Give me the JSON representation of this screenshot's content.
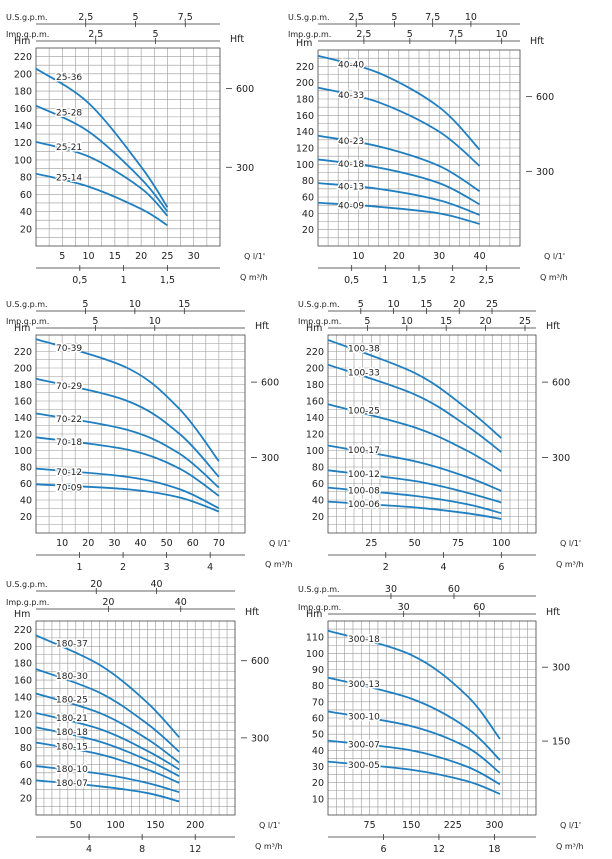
{
  "colors": {
    "curve": "#1f7fc0",
    "grid": "#9a9a9a",
    "text": "#222222"
  },
  "chart_data": [
    {
      "type": "line",
      "xlabel": "Q l/1'",
      "x2label": "Q m³/h",
      "ylabel": "Hm",
      "y2label": "Hft",
      "top1label": "U.S.g.p.m.",
      "top2label": "Imp.g.p.m.",
      "xlim": [
        0,
        35
      ],
      "ylim": [
        0,
        230
      ],
      "xticks": [
        5,
        10,
        15,
        20,
        25,
        30
      ],
      "yticks": [
        20,
        40,
        60,
        80,
        100,
        120,
        140,
        160,
        180,
        200,
        220
      ],
      "x2ticks": [
        {
          "v": 0.5,
          "t": "0,5"
        },
        {
          "v": 1,
          "t": "1"
        },
        {
          "v": 1.5,
          "t": "1,5"
        }
      ],
      "top1ticks": [
        {
          "v": 2.5,
          "t": "2,5"
        },
        {
          "v": 5,
          "t": "5"
        },
        {
          "v": 7.5,
          "t": "7,5"
        }
      ],
      "top2ticks": [
        {
          "v": 2.5,
          "t": "2,5"
        },
        {
          "v": 5,
          "t": "5"
        }
      ],
      "y2ticks": [
        {
          "v": 300,
          "t": "300"
        },
        {
          "v": 600,
          "t": "600"
        }
      ],
      "series": [
        {
          "name": "25-36",
          "x": [
            0,
            10,
            20,
            25
          ],
          "y": [
            206,
            166,
            92,
            45
          ]
        },
        {
          "name": "25-28",
          "x": [
            0,
            10,
            20,
            25
          ],
          "y": [
            163,
            133,
            78,
            40
          ]
        },
        {
          "name": "25-21",
          "x": [
            0,
            10,
            20,
            25
          ],
          "y": [
            121,
            104,
            67,
            35
          ]
        },
        {
          "name": "25-14",
          "x": [
            0,
            10,
            20,
            25
          ],
          "y": [
            84,
            69,
            43,
            24
          ]
        }
      ]
    },
    {
      "type": "line",
      "xlabel": "Q l/1'",
      "x2label": "Q m³/h",
      "ylabel": "Hm",
      "y2label": "Hft",
      "top1label": "U.S.g.p.m.",
      "top2label": "Imp.g.p.m.",
      "xlim": [
        0,
        50
      ],
      "ylim": [
        0,
        240
      ],
      "xticks": [
        10,
        20,
        30,
        40
      ],
      "yticks": [
        20,
        40,
        60,
        80,
        100,
        120,
        140,
        160,
        180,
        200,
        220
      ],
      "x2ticks": [
        {
          "v": 0.5,
          "t": "0,5"
        },
        {
          "v": 1,
          "t": "1"
        },
        {
          "v": 1.5,
          "t": "1,5"
        },
        {
          "v": 2,
          "t": "2"
        },
        {
          "v": 2.5,
          "t": "2,5"
        }
      ],
      "top1ticks": [
        {
          "v": 2.5,
          "t": "2,5"
        },
        {
          "v": 5,
          "t": "5"
        },
        {
          "v": 7.5,
          "t": "7,5"
        },
        {
          "v": 10,
          "t": "10"
        }
      ],
      "top2ticks": [
        {
          "v": 2.5,
          "t": "2,5"
        },
        {
          "v": 5,
          "t": "5"
        },
        {
          "v": 7.5,
          "t": "7,5"
        },
        {
          "v": 10,
          "t": "10"
        }
      ],
      "y2ticks": [
        {
          "v": 300,
          "t": "300"
        },
        {
          "v": 600,
          "t": "600"
        }
      ],
      "series": [
        {
          "name": "40-40",
          "x": [
            0,
            15,
            30,
            40
          ],
          "y": [
            233,
            212,
            170,
            118
          ]
        },
        {
          "name": "40-33",
          "x": [
            0,
            15,
            30,
            40
          ],
          "y": [
            194,
            176,
            140,
            98
          ]
        },
        {
          "name": "40-23",
          "x": [
            0,
            15,
            30,
            40
          ],
          "y": [
            135,
            122,
            98,
            67
          ]
        },
        {
          "name": "40-18",
          "x": [
            0,
            15,
            30,
            40
          ],
          "y": [
            106,
            96,
            77,
            51
          ]
        },
        {
          "name": "40-13",
          "x": [
            0,
            15,
            30,
            40
          ],
          "y": [
            77,
            70,
            56,
            38
          ]
        },
        {
          "name": "40-09",
          "x": [
            0,
            15,
            30,
            40
          ],
          "y": [
            53,
            48,
            40,
            27
          ]
        }
      ]
    },
    {
      "type": "line",
      "xlabel": "Q l/1'",
      "x2label": "Q m³/h",
      "ylabel": "Hm",
      "y2label": "Hft",
      "top1label": "U.S.g.p.m.",
      "top2label": "Imp.g.p.m.",
      "xlim": [
        0,
        80
      ],
      "ylim": [
        0,
        240
      ],
      "xticks": [
        10,
        20,
        30,
        40,
        50,
        60,
        70
      ],
      "yticks": [
        20,
        40,
        60,
        80,
        100,
        120,
        140,
        160,
        180,
        200,
        220
      ],
      "x2ticks": [
        {
          "v": 1,
          "t": "1"
        },
        {
          "v": 2,
          "t": "2"
        },
        {
          "v": 3,
          "t": "3"
        },
        {
          "v": 4,
          "t": "4"
        }
      ],
      "top1ticks": [
        {
          "v": 5,
          "t": "5"
        },
        {
          "v": 10,
          "t": "10"
        },
        {
          "v": 15,
          "t": "15"
        }
      ],
      "top2ticks": [
        {
          "v": 5,
          "t": "5"
        },
        {
          "v": 10,
          "t": "10"
        }
      ],
      "y2ticks": [
        {
          "v": 300,
          "t": "300"
        },
        {
          "v": 600,
          "t": "600"
        }
      ],
      "series": [
        {
          "name": "70-39",
          "x": [
            0,
            35,
            55,
            70
          ],
          "y": [
            235,
            200,
            150,
            87
          ]
        },
        {
          "name": "70-29",
          "x": [
            0,
            35,
            55,
            70
          ],
          "y": [
            187,
            160,
            120,
            68
          ]
        },
        {
          "name": "70-22",
          "x": [
            0,
            35,
            55,
            70
          ],
          "y": [
            145,
            125,
            96,
            55
          ]
        },
        {
          "name": "70-18",
          "x": [
            0,
            35,
            55,
            70
          ],
          "y": [
            116,
            101,
            78,
            45
          ]
        },
        {
          "name": "70-12",
          "x": [
            0,
            35,
            55,
            70
          ],
          "y": [
            78,
            68,
            53,
            30
          ]
        },
        {
          "name": "70-09",
          "x": [
            0,
            35,
            55,
            70
          ],
          "y": [
            59,
            53,
            43,
            26
          ]
        }
      ]
    },
    {
      "type": "line",
      "xlabel": "Q l/1'",
      "x2label": "Q m³/h",
      "ylabel": "Hm",
      "y2label": "Hft",
      "top1label": "U.S.g.p.m.",
      "top2label": "Imp.g.p.m.",
      "xlim": [
        0,
        120
      ],
      "ylim": [
        0,
        240
      ],
      "xticks": [
        25,
        50,
        75,
        100
      ],
      "yticks": [
        20,
        40,
        60,
        80,
        100,
        120,
        140,
        160,
        180,
        200,
        220
      ],
      "x2ticks": [
        {
          "v": 2,
          "t": "2"
        },
        {
          "v": 4,
          "t": "4"
        },
        {
          "v": 6,
          "t": "6"
        }
      ],
      "top1ticks": [
        {
          "v": 5,
          "t": "5"
        },
        {
          "v": 10,
          "t": "10"
        },
        {
          "v": 15,
          "t": "15"
        },
        {
          "v": 20,
          "t": "20"
        },
        {
          "v": 25,
          "t": "25"
        }
      ],
      "top2ticks": [
        {
          "v": 5,
          "t": "5"
        },
        {
          "v": 10,
          "t": "10"
        },
        {
          "v": 15,
          "t": "15"
        },
        {
          "v": 20,
          "t": "20"
        },
        {
          "v": 25,
          "t": "25"
        }
      ],
      "y2ticks": [
        {
          "v": 300,
          "t": "300"
        },
        {
          "v": 600,
          "t": "600"
        }
      ],
      "series": [
        {
          "name": "100-38",
          "x": [
            0,
            50,
            80,
            100
          ],
          "y": [
            234,
            194,
            151,
            115
          ]
        },
        {
          "name": "100-33",
          "x": [
            0,
            50,
            80,
            100
          ],
          "y": [
            204,
            168,
            130,
            98
          ]
        },
        {
          "name": "100-25",
          "x": [
            0,
            50,
            80,
            100
          ],
          "y": [
            156,
            128,
            100,
            75
          ]
        },
        {
          "name": "100-17",
          "x": [
            0,
            50,
            80,
            100
          ],
          "y": [
            106,
            87,
            68,
            51
          ]
        },
        {
          "name": "100-12",
          "x": [
            0,
            50,
            80,
            100
          ],
          "y": [
            76,
            63,
            49,
            37
          ]
        },
        {
          "name": "100-08",
          "x": [
            0,
            50,
            80,
            100
          ],
          "y": [
            55,
            45,
            35,
            24
          ]
        },
        {
          "name": "100-06",
          "x": [
            0,
            50,
            80,
            100
          ],
          "y": [
            38,
            31,
            24,
            17
          ]
        }
      ]
    },
    {
      "type": "line",
      "xlabel": "Q l/1'",
      "x2label": "Q m³/h",
      "ylabel": "Hm",
      "y2label": "Hft",
      "top1label": "U.S.g.p.m.",
      "top2label": "Imp.g.p.m.",
      "xlim": [
        0,
        250
      ],
      "ylim": [
        0,
        230
      ],
      "xticks": [
        50,
        100,
        150,
        200
      ],
      "yticks": [
        20,
        40,
        60,
        80,
        100,
        120,
        140,
        160,
        180,
        200,
        220
      ],
      "x2ticks": [
        {
          "v": 4,
          "t": "4"
        },
        {
          "v": 8,
          "t": "8"
        },
        {
          "v": 12,
          "t": "12"
        }
      ],
      "top1ticks": [
        {
          "v": 20,
          "t": "20"
        },
        {
          "v": 40,
          "t": "40"
        }
      ],
      "top2ticks": [
        {
          "v": 20,
          "t": "20"
        },
        {
          "v": 40,
          "t": "40"
        }
      ],
      "y2ticks": [
        {
          "v": 300,
          "t": "300"
        },
        {
          "v": 600,
          "t": "600"
        }
      ],
      "series": [
        {
          "name": "180-37",
          "x": [
            0,
            80,
            140,
            180
          ],
          "y": [
            213,
            178,
            133,
            92
          ]
        },
        {
          "name": "180-30",
          "x": [
            0,
            80,
            140,
            180
          ],
          "y": [
            173,
            145,
            108,
            75
          ]
        },
        {
          "name": "180-25",
          "x": [
            0,
            80,
            140,
            180
          ],
          "y": [
            144,
            121,
            90,
            62
          ]
        },
        {
          "name": "180-21",
          "x": [
            0,
            80,
            140,
            180
          ],
          "y": [
            121,
            102,
            76,
            54
          ]
        },
        {
          "name": "180-18",
          "x": [
            0,
            80,
            140,
            180
          ],
          "y": [
            104,
            87,
            65,
            46
          ]
        },
        {
          "name": "180-15",
          "x": [
            0,
            80,
            140,
            180
          ],
          "y": [
            86,
            72,
            54,
            38
          ]
        },
        {
          "name": "180-10",
          "x": [
            0,
            80,
            140,
            180
          ],
          "y": [
            58,
            49,
            38,
            27
          ]
        },
        {
          "name": "180-07",
          "x": [
            0,
            80,
            140,
            180
          ],
          "y": [
            41,
            34,
            26,
            16
          ]
        }
      ]
    },
    {
      "type": "line",
      "xlabel": "Q l/1'",
      "x2label": "Q m³/h",
      "ylabel": "Hm",
      "y2label": "Hft",
      "top1label": "U.S.g.p.m.",
      "top2label": "Imp.g.p.m.",
      "xlim": [
        0,
        375
      ],
      "ylim": [
        0,
        120
      ],
      "xticks": [
        75,
        150,
        225,
        300
      ],
      "yticks": [
        10,
        20,
        30,
        40,
        50,
        60,
        70,
        80,
        90,
        100,
        110
      ],
      "x2ticks": [
        {
          "v": 6,
          "t": "6"
        },
        {
          "v": 12,
          "t": "12"
        },
        {
          "v": 18,
          "t": "18"
        }
      ],
      "top1ticks": [
        {
          "v": 30,
          "t": "30"
        },
        {
          "v": 60,
          "t": "60"
        }
      ],
      "top2ticks": [
        {
          "v": 30,
          "t": "30"
        },
        {
          "v": 60,
          "t": "60"
        }
      ],
      "y2ticks": [
        {
          "v": 150,
          "t": "150"
        },
        {
          "v": 300,
          "t": "300"
        }
      ],
      "series": [
        {
          "name": "300-18",
          "x": [
            0,
            150,
            250,
            310
          ],
          "y": [
            114,
            99,
            74,
            47
          ]
        },
        {
          "name": "300-13",
          "x": [
            0,
            150,
            250,
            310
          ],
          "y": [
            85,
            72,
            54,
            34
          ]
        },
        {
          "name": "300-10",
          "x": [
            0,
            150,
            250,
            310
          ],
          "y": [
            64,
            55,
            42,
            26
          ]
        },
        {
          "name": "300-07",
          "x": [
            0,
            150,
            250,
            310
          ],
          "y": [
            46,
            40,
            30,
            19
          ]
        },
        {
          "name": "300-05",
          "x": [
            0,
            150,
            250,
            310
          ],
          "y": [
            33,
            28,
            21,
            13
          ]
        }
      ]
    }
  ]
}
